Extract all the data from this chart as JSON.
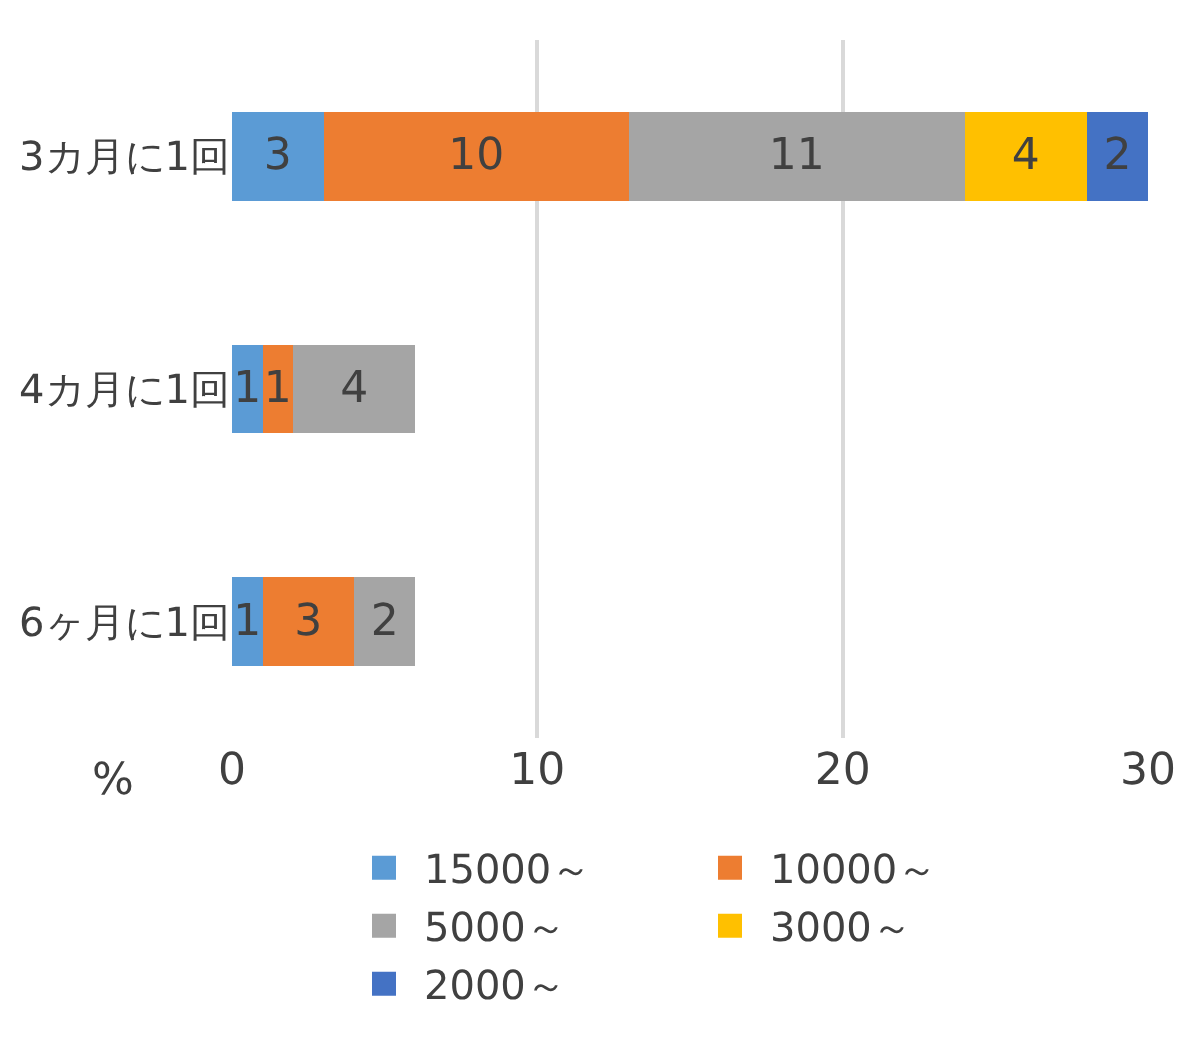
{
  "chart_data": {
    "type": "bar",
    "orientation": "horizontal",
    "stacked": true,
    "categories": [
      "3カ月に1回",
      "4カ月に1回",
      "6ヶ月に1回"
    ],
    "xlabel": "%",
    "xlim": [
      0,
      30
    ],
    "xticks": [
      0,
      10,
      20,
      30
    ],
    "grid": "x",
    "legend": "bottom",
    "data_labels": true,
    "series": [
      {
        "name": "15000～",
        "color": "#5b9bd5",
        "values": [
          3,
          1,
          1
        ]
      },
      {
        "name": "10000～",
        "color": "#ed7d31",
        "values": [
          10,
          1,
          3
        ]
      },
      {
        "name": "5000～",
        "color": "#a5a5a5",
        "values": [
          11,
          4,
          2
        ]
      },
      {
        "name": "3000～",
        "color": "#ffc000",
        "values": [
          4,
          null,
          null
        ]
      },
      {
        "name": "2000～",
        "color": "#4472c4",
        "values": [
          2,
          null,
          null
        ]
      }
    ]
  }
}
